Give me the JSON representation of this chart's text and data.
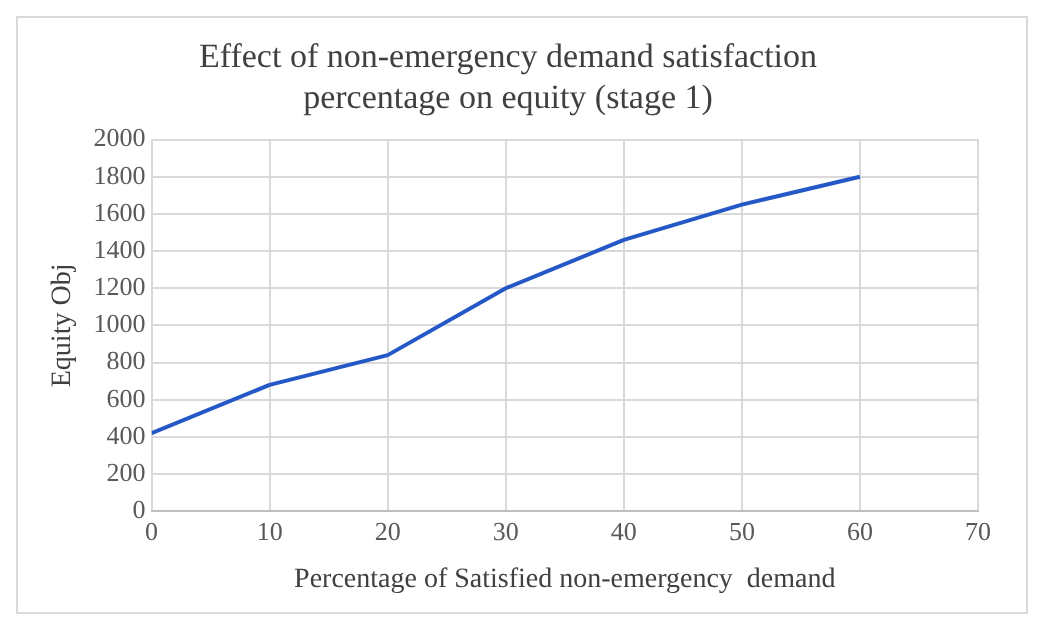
{
  "chart_data": {
    "type": "line",
    "title": "Effect of non-emergency demand satisfaction percentage on equity (stage 1)",
    "xlabel": "Percentage of Satisfied non-emergency  demand",
    "ylabel": "Equity Obj",
    "x": [
      0,
      10,
      20,
      30,
      40,
      50,
      60
    ],
    "series": [
      {
        "color": "#2458c6",
        "values": [
          420,
          680,
          840,
          1200,
          1460,
          1650,
          1800
        ]
      }
    ],
    "xlim": [
      0,
      70
    ],
    "xticks": [
      0,
      10,
      20,
      30,
      40,
      50,
      60,
      70
    ],
    "ylim": [
      0,
      2000
    ],
    "yticks": [
      0,
      200,
      400,
      600,
      800,
      1000,
      1200,
      1400,
      1600,
      1800,
      2000
    ],
    "grid": true,
    "marker": "none",
    "line_style": "solid",
    "legend": false
  }
}
